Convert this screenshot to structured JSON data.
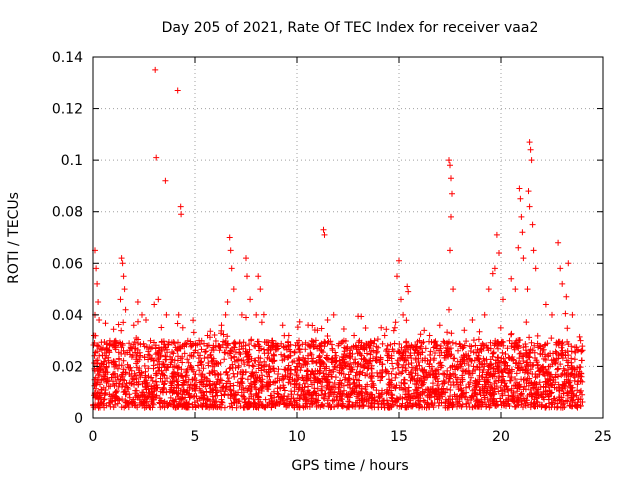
{
  "chart_data": {
    "type": "scatter",
    "title": "Day 205 of 2021, Rate Of TEC Index for receiver vaa2",
    "xlabel": "GPS time / hours",
    "ylabel": "ROTI / TECUs",
    "xlim": [
      0,
      25
    ],
    "ylim": [
      0,
      0.14
    ],
    "grid": true,
    "marker": "+",
    "marker_color": "#ff0000",
    "x_ticks": [
      0,
      5,
      10,
      15,
      20,
      25
    ],
    "x_tick_labels": [
      "0",
      "5",
      "10",
      "15",
      "20",
      "25"
    ],
    "y_ticks": [
      0,
      0.02,
      0.04,
      0.06,
      0.08,
      0.1,
      0.12,
      0.14
    ],
    "y_tick_labels": [
      "0",
      "0.02",
      "0.04",
      "0.06",
      "0.08",
      "0.1",
      "0.12",
      "0.14"
    ],
    "series": [
      {
        "name": "vaa2",
        "points": [
          [
            0.1,
            0.065
          ],
          [
            0.15,
            0.058
          ],
          [
            0.2,
            0.052
          ],
          [
            0.25,
            0.045
          ],
          [
            0.1,
            0.04
          ],
          [
            0.3,
            0.038
          ],
          [
            0.05,
            0.032
          ],
          [
            1.4,
            0.062
          ],
          [
            1.45,
            0.06
          ],
          [
            1.5,
            0.055
          ],
          [
            1.55,
            0.05
          ],
          [
            1.35,
            0.046
          ],
          [
            1.6,
            0.042
          ],
          [
            2.0,
            0.036
          ],
          [
            2.2,
            0.045
          ],
          [
            2.4,
            0.04
          ],
          [
            2.6,
            0.038
          ],
          [
            3.05,
            0.135
          ],
          [
            3.1,
            0.101
          ],
          [
            3.0,
            0.044
          ],
          [
            3.2,
            0.046
          ],
          [
            3.55,
            0.092
          ],
          [
            3.6,
            0.04
          ],
          [
            4.15,
            0.127
          ],
          [
            4.3,
            0.082
          ],
          [
            4.32,
            0.079
          ],
          [
            4.2,
            0.04
          ],
          [
            4.4,
            0.035
          ],
          [
            5.2,
            0.03
          ],
          [
            5.6,
            0.028
          ],
          [
            6.3,
            0.036
          ],
          [
            6.5,
            0.04
          ],
          [
            6.7,
            0.07
          ],
          [
            6.75,
            0.065
          ],
          [
            6.8,
            0.058
          ],
          [
            6.9,
            0.05
          ],
          [
            6.6,
            0.045
          ],
          [
            7.3,
            0.04
          ],
          [
            7.5,
            0.062
          ],
          [
            7.55,
            0.055
          ],
          [
            7.7,
            0.046
          ],
          [
            8.1,
            0.055
          ],
          [
            8.2,
            0.05
          ],
          [
            8.0,
            0.04
          ],
          [
            8.8,
            0.03
          ],
          [
            9.3,
            0.036
          ],
          [
            9.6,
            0.032
          ],
          [
            10.1,
            0.03
          ],
          [
            10.6,
            0.028
          ],
          [
            11.0,
            0.034
          ],
          [
            11.3,
            0.073
          ],
          [
            11.35,
            0.071
          ],
          [
            11.5,
            0.038
          ],
          [
            11.8,
            0.04
          ],
          [
            12.3,
            0.03
          ],
          [
            12.8,
            0.032
          ],
          [
            13.3,
            0.028
          ],
          [
            13.8,
            0.03
          ],
          [
            14.3,
            0.032
          ],
          [
            14.9,
            0.055
          ],
          [
            15.0,
            0.061
          ],
          [
            15.1,
            0.046
          ],
          [
            15.2,
            0.04
          ],
          [
            15.4,
            0.051
          ],
          [
            15.45,
            0.049
          ],
          [
            14.8,
            0.035
          ],
          [
            16.0,
            0.03
          ],
          [
            16.5,
            0.032
          ],
          [
            17.0,
            0.036
          ],
          [
            17.45,
            0.1
          ],
          [
            17.5,
            0.098
          ],
          [
            17.55,
            0.093
          ],
          [
            17.6,
            0.087
          ],
          [
            17.55,
            0.078
          ],
          [
            17.5,
            0.065
          ],
          [
            17.45,
            0.042
          ],
          [
            17.65,
            0.05
          ],
          [
            18.2,
            0.034
          ],
          [
            18.6,
            0.038
          ],
          [
            19.2,
            0.04
          ],
          [
            19.4,
            0.05
          ],
          [
            19.6,
            0.056
          ],
          [
            19.8,
            0.071
          ],
          [
            19.9,
            0.064
          ],
          [
            19.7,
            0.058
          ],
          [
            20.1,
            0.046
          ],
          [
            20.5,
            0.054
          ],
          [
            20.7,
            0.05
          ],
          [
            20.9,
            0.089
          ],
          [
            20.95,
            0.085
          ],
          [
            21.0,
            0.078
          ],
          [
            21.05,
            0.072
          ],
          [
            20.85,
            0.066
          ],
          [
            21.1,
            0.062
          ],
          [
            21.4,
            0.107
          ],
          [
            21.45,
            0.104
          ],
          [
            21.5,
            0.1
          ],
          [
            21.35,
            0.088
          ],
          [
            21.4,
            0.082
          ],
          [
            21.55,
            0.075
          ],
          [
            21.6,
            0.065
          ],
          [
            21.7,
            0.058
          ],
          [
            21.3,
            0.05
          ],
          [
            22.2,
            0.044
          ],
          [
            22.5,
            0.04
          ],
          [
            22.8,
            0.068
          ],
          [
            22.9,
            0.058
          ],
          [
            23.0,
            0.052
          ],
          [
            23.3,
            0.06
          ],
          [
            23.2,
            0.047
          ],
          [
            23.5,
            0.04
          ],
          [
            23.9,
            0.03
          ]
        ],
        "dense_band": {
          "description": "continuous dense background scatter",
          "x_range": [
            0,
            24
          ],
          "y_range": [
            0.004,
            0.03
          ]
        }
      }
    ]
  }
}
